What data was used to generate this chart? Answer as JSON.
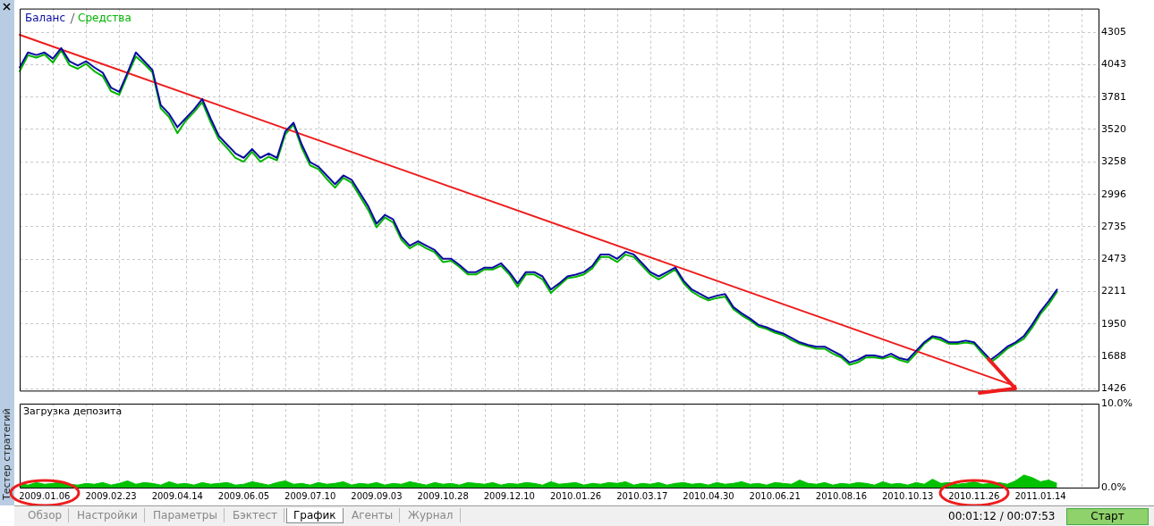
{
  "chart_data": [
    {
      "type": "line",
      "legend": "top left",
      "grid": true,
      "tick_labels": "y",
      "marker": "none",
      "line_style": "solid",
      "categories": [
        null,
        null,
        null,
        "2009.01.06",
        null,
        null,
        null,
        null,
        null,
        null,
        null,
        "2009.02.23",
        null,
        null,
        null,
        null,
        null,
        null,
        null,
        "2009.04.14",
        null,
        null,
        null,
        null,
        null,
        null,
        null,
        "2009.06.05",
        null,
        null,
        null,
        null,
        null,
        null,
        null,
        "2009.07.10",
        null,
        null,
        null,
        null,
        null,
        null,
        null,
        "2009.09.03",
        null,
        null,
        null,
        null,
        null,
        null,
        null,
        "2009.10.28",
        null,
        null,
        null,
        null,
        null,
        null,
        null,
        "2009.12.10",
        null,
        null,
        null,
        null,
        null,
        null,
        null,
        "2010.01.26",
        null,
        null,
        null,
        null,
        null,
        null,
        null,
        "2010.03.17",
        null,
        null,
        null,
        null,
        null,
        null,
        null,
        "2010.04.30",
        null,
        null,
        null,
        null,
        null,
        null,
        null,
        "2010.06.21",
        null,
        null,
        null,
        null,
        null,
        null,
        null,
        "2010.08.16",
        null,
        null,
        null,
        null,
        null,
        null,
        null,
        "2010.10.13",
        null,
        null,
        null,
        null,
        null,
        null,
        null,
        "2010.11.26",
        null,
        null,
        null,
        null,
        null,
        null,
        null,
        "2011.01.14",
        null,
        null,
        null,
        null,
        null,
        null,
        null
      ],
      "ylim": [
        1412,
        4496
      ],
      "yticks": [
        4305,
        4043,
        3781,
        3520,
        3258,
        2996,
        2735,
        2473,
        2211,
        1950,
        1688,
        1426
      ],
      "series": [
        {
          "name": "Баланс",
          "color": "#0a0aa0",
          "values": [
            4021,
            4142,
            4121,
            4142,
            4092,
            4177,
            4071,
            4036,
            4071,
            4021,
            3979,
            3858,
            3823,
            3979,
            4142,
            4071,
            4000,
            3717,
            3646,
            3539,
            3610,
            3681,
            3766,
            3610,
            3468,
            3397,
            3327,
            3291,
            3362,
            3291,
            3327,
            3291,
            3504,
            3575,
            3397,
            3256,
            3220,
            3149,
            3078,
            3149,
            3114,
            3008,
            2901,
            2759,
            2830,
            2795,
            2653,
            2582,
            2618,
            2582,
            2547,
            2476,
            2476,
            2426,
            2369,
            2369,
            2405,
            2405,
            2440,
            2369,
            2277,
            2369,
            2369,
            2334,
            2228,
            2277,
            2334,
            2348,
            2369,
            2419,
            2511,
            2511,
            2476,
            2533,
            2511,
            2440,
            2369,
            2334,
            2369,
            2405,
            2299,
            2228,
            2192,
            2157,
            2178,
            2192,
            2086,
            2036,
            1994,
            1944,
            1923,
            1894,
            1873,
            1838,
            1802,
            1781,
            1767,
            1767,
            1731,
            1696,
            1639,
            1660,
            1696,
            1696,
            1682,
            1710,
            1675,
            1660,
            1731,
            1802,
            1852,
            1838,
            1802,
            1802,
            1816,
            1802,
            1731,
            1660,
            1710,
            1767,
            1802,
            1852,
            1944,
            2050,
            2135,
            2228,
            null,
            null,
            null,
            null,
            null
          ]
        },
        {
          "color": "#ee1c1c",
          "values": [
            4284,
            null,
            null,
            null,
            null,
            null,
            null,
            null,
            null,
            null,
            null,
            null,
            null,
            null,
            null,
            null,
            null,
            null,
            null,
            null,
            null,
            null,
            null,
            null,
            null,
            null,
            null,
            null,
            null,
            null,
            null,
            null,
            null,
            null,
            null,
            null,
            null,
            null,
            null,
            null,
            null,
            null,
            null,
            null,
            null,
            null,
            null,
            null,
            null,
            null,
            null,
            null,
            null,
            null,
            null,
            null,
            null,
            null,
            null,
            null,
            null,
            null,
            null,
            null,
            null,
            null,
            null,
            null,
            null,
            null,
            null,
            null,
            null,
            null,
            null,
            null,
            null,
            null,
            null,
            null,
            null,
            null,
            null,
            null,
            null,
            null,
            null,
            null,
            null,
            null,
            null,
            null,
            null,
            null,
            null,
            null,
            null,
            null,
            null,
            null,
            null,
            null,
            null,
            null,
            null,
            null,
            null,
            null,
            null,
            null,
            null,
            null,
            null,
            null,
            null,
            null,
            null,
            null,
            null,
            null,
            1448,
            null,
            null,
            null,
            null,
            null,
            null,
            null,
            null,
            null,
            null
          ]
        },
        {
          "name": "Средства",
          "color": "#00b400",
          "values": [
            3990,
            4120,
            4100,
            4125,
            4060,
            4160,
            4040,
            4010,
            4050,
            3990,
            3950,
            3830,
            3800,
            3960,
            4110,
            4050,
            3980,
            3690,
            3620,
            3490,
            3590,
            3660,
            3740,
            3580,
            3440,
            3370,
            3290,
            3260,
            3340,
            3260,
            3300,
            3270,
            3480,
            3560,
            3370,
            3230,
            3200,
            3120,
            3050,
            3130,
            3090,
            2980,
            2870,
            2730,
            2810,
            2770,
            2630,
            2560,
            2600,
            2560,
            2530,
            2450,
            2460,
            2410,
            2350,
            2350,
            2390,
            2390,
            2420,
            2350,
            2250,
            2350,
            2350,
            2310,
            2200,
            2260,
            2320,
            2330,
            2350,
            2400,
            2490,
            2490,
            2450,
            2510,
            2490,
            2420,
            2350,
            2310,
            2350,
            2390,
            2280,
            2210,
            2170,
            2140,
            2160,
            2170,
            2070,
            2020,
            1980,
            1930,
            1910,
            1880,
            1860,
            1820,
            1790,
            1770,
            1750,
            1750,
            1710,
            1680,
            1620,
            1640,
            1680,
            1680,
            1670,
            1690,
            1660,
            1640,
            1710,
            1790,
            1840,
            1820,
            1790,
            1790,
            1800,
            1790,
            1710,
            1640,
            1690,
            1750,
            1790,
            1830,
            1920,
            2030,
            2110,
            2210,
            null,
            null,
            null,
            null,
            null
          ]
        }
      ]
    },
    {
      "type": "area",
      "title": "Загрузка депозита",
      "grid": "x",
      "color": "#00c000",
      "categories": [
        null,
        null,
        null,
        "2009.01.06",
        null,
        null,
        null,
        null,
        null,
        null,
        null,
        "2009.02.23",
        null,
        null,
        null,
        null,
        null,
        null,
        null,
        "2009.04.14",
        null,
        null,
        null,
        null,
        null,
        null,
        null,
        "2009.06.05",
        null,
        null,
        null,
        null,
        null,
        null,
        null,
        "2009.07.10",
        null,
        null,
        null,
        null,
        null,
        null,
        null,
        "2009.09.03",
        null,
        null,
        null,
        null,
        null,
        null,
        null,
        "2009.10.28",
        null,
        null,
        null,
        null,
        null,
        null,
        null,
        "2009.12.10",
        null,
        null,
        null,
        null,
        null,
        null,
        null,
        "2010.01.26",
        null,
        null,
        null,
        null,
        null,
        null,
        null,
        "2010.03.17",
        null,
        null,
        null,
        null,
        null,
        null,
        null,
        "2010.04.30",
        null,
        null,
        null,
        null,
        null,
        null,
        null,
        "2010.06.21",
        null,
        null,
        null,
        null,
        null,
        null,
        null,
        "2010.08.16",
        null,
        null,
        null,
        null,
        null,
        null,
        null,
        "2010.10.13",
        null,
        null,
        null,
        null,
        null,
        null,
        null,
        "2010.11.26",
        null,
        null,
        null,
        null,
        null,
        null,
        null,
        "2011.01.14",
        null,
        null,
        null,
        null,
        null,
        null,
        null
      ],
      "ylim": [
        0,
        10
      ],
      "yticks": [
        {
          "value": 10,
          "label": "10.0%"
        },
        {
          "value": 0,
          "label": "0.0%"
        }
      ],
      "values": [
        0.5,
        0.3,
        0.6,
        0.4,
        0.5,
        0.7,
        0.4,
        0.3,
        0.5,
        0.4,
        0.6,
        0.3,
        0.5,
        0.8,
        0.4,
        0.6,
        0.5,
        0.3,
        0.7,
        0.4,
        0.5,
        0.3,
        0.6,
        0.4,
        0.5,
        0.6,
        0.3,
        0.4,
        0.7,
        0.5,
        0.3,
        0.6,
        0.8,
        0.4,
        0.5,
        0.3,
        0.6,
        0.4,
        0.5,
        0.7,
        0.3,
        0.5,
        0.4,
        0.6,
        0.3,
        0.5,
        0.4,
        0.7,
        0.5,
        0.3,
        0.6,
        0.4,
        0.5,
        0.3,
        0.6,
        0.5,
        0.4,
        0.6,
        0.3,
        0.5,
        0.4,
        0.6,
        0.5,
        0.3,
        0.7,
        0.4,
        0.5,
        0.6,
        0.3,
        0.5,
        0.4,
        0.6,
        0.5,
        0.7,
        0.3,
        0.5,
        0.4,
        0.6,
        0.3,
        0.5,
        0.6,
        0.4,
        0.5,
        0.3,
        0.6,
        0.4,
        0.5,
        0.7,
        0.4,
        0.5,
        0.3,
        0.6,
        0.5,
        0.4,
        0.9,
        0.5,
        0.4,
        0.6,
        0.3,
        0.5,
        0.4,
        0.6,
        0.5,
        0.3,
        0.7,
        0.4,
        0.5,
        0.3,
        0.6,
        0.4,
        1.0,
        0.5,
        0.6,
        0.4,
        0.5,
        0.7,
        0.4,
        0.5,
        0.6,
        0.4,
        0.8,
        1.5,
        1.2,
        0.7,
        0.9,
        0.5,
        null,
        null,
        null,
        null,
        null
      ]
    },
    {
      "type": "other",
      "annotations": [
        "Тестер стратегий",
        "Обзор",
        "Настройки",
        "Параметры",
        "Бэктест",
        "График",
        "Агенты",
        "Журнал",
        "00:01:12 / 00:07:53",
        "Старт"
      ]
    }
  ]
}
